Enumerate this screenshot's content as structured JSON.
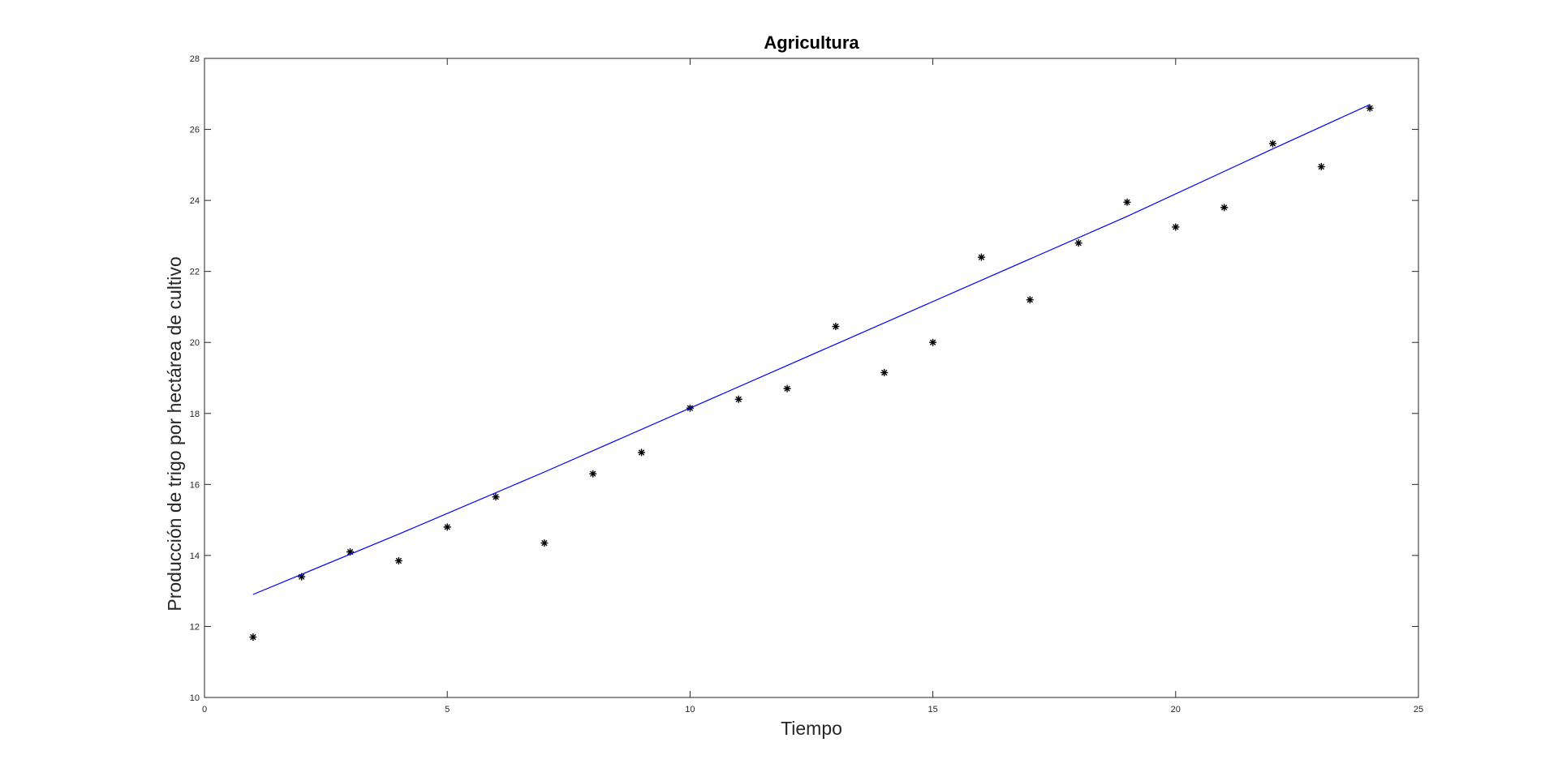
{
  "chart_data": {
    "type": "scatter",
    "title": "Agricultura",
    "xlabel": "Tiempo",
    "ylabel": "Producción de trigo por hectárea de cultivo",
    "xlim": [
      0,
      25
    ],
    "ylim": [
      10,
      28
    ],
    "xticks": [
      0,
      5,
      10,
      15,
      20,
      25
    ],
    "yticks": [
      10,
      12,
      14,
      16,
      18,
      20,
      22,
      24,
      26,
      28
    ],
    "grid": false,
    "legend": "none",
    "series": [
      {
        "kind": "scatter",
        "marker": "*",
        "color": "#000000",
        "x": [
          1,
          2,
          3,
          4,
          5,
          6,
          7,
          8,
          9,
          10,
          11,
          12,
          13,
          14,
          15,
          16,
          17,
          18,
          19,
          20,
          21,
          22,
          23,
          24
        ],
        "y": [
          11.7,
          13.4,
          14.1,
          13.85,
          14.8,
          15.65,
          14.35,
          16.3,
          16.9,
          18.15,
          18.4,
          18.7,
          20.45,
          19.15,
          20.0,
          22.4,
          21.2,
          22.8,
          23.95,
          23.25,
          23.8,
          25.6,
          24.95,
          26.6
        ]
      },
      {
        "kind": "line",
        "color": "#0000ff",
        "x": [
          1,
          4,
          7,
          10,
          13,
          16,
          19,
          22,
          24
        ],
        "y": [
          12.9,
          14.6,
          16.35,
          18.15,
          19.95,
          21.75,
          23.55,
          25.45,
          26.7
        ]
      }
    ]
  }
}
